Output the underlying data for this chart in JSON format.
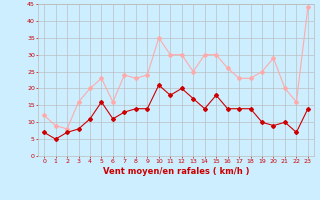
{
  "hours": [
    0,
    1,
    2,
    3,
    4,
    5,
    6,
    7,
    8,
    9,
    10,
    11,
    12,
    13,
    14,
    15,
    16,
    17,
    18,
    19,
    20,
    21,
    22,
    23
  ],
  "wind_mean": [
    7,
    5,
    7,
    8,
    11,
    16,
    11,
    13,
    14,
    14,
    21,
    18,
    20,
    17,
    14,
    18,
    14,
    14,
    14,
    10,
    9,
    10,
    7,
    14
  ],
  "wind_gust": [
    12,
    9,
    8,
    16,
    20,
    23,
    16,
    24,
    23,
    24,
    35,
    30,
    30,
    25,
    30,
    30,
    26,
    23,
    23,
    25,
    29,
    20,
    16,
    44
  ],
  "mean_color": "#cc0000",
  "gust_color": "#ffaaaa",
  "background_color": "#cceeff",
  "grid_color": "#bbbbbb",
  "xlabel": "Vent moyen/en rafales ( km/h )",
  "xlabel_color": "#cc0000",
  "xlabel_fontsize": 6,
  "tick_color": "#cc0000",
  "tick_fontsize": 4.5,
  "ylim": [
    0,
    45
  ],
  "yticks": [
    0,
    5,
    10,
    15,
    20,
    25,
    30,
    35,
    40,
    45
  ],
  "marker": "D",
  "markersize": 2,
  "linewidth": 0.8
}
